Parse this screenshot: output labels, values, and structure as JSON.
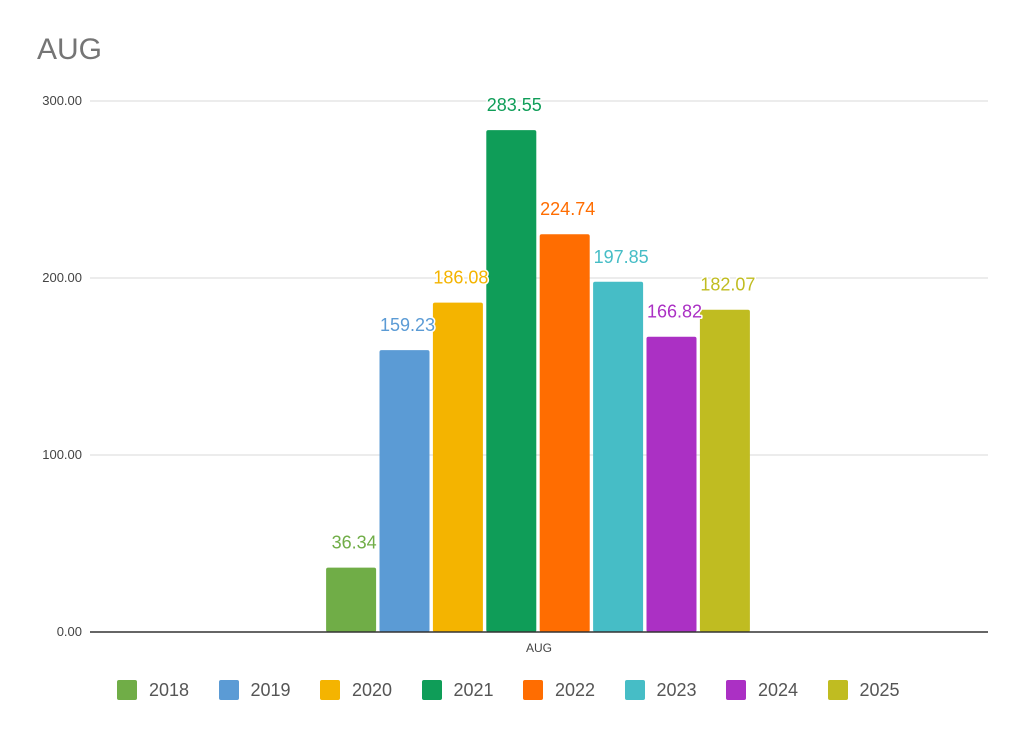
{
  "chart_data": {
    "type": "bar",
    "title": "AUG",
    "categories": [
      "AUG"
    ],
    "xlabel": "",
    "ylabel": "",
    "ylim": [
      0,
      300
    ],
    "yticks": [
      "0.00",
      "100.00",
      "200.00",
      "300.00"
    ],
    "grid": true,
    "legend_position": "bottom",
    "series": [
      {
        "name": "2018",
        "values": [
          36.34
        ],
        "label": "36.34",
        "color": "#70ad47"
      },
      {
        "name": "2019",
        "values": [
          159.23
        ],
        "label": "159.23",
        "color": "#5b9bd5"
      },
      {
        "name": "2020",
        "values": [
          186.08
        ],
        "label": "186.08",
        "color": "#f4b400"
      },
      {
        "name": "2021",
        "values": [
          283.55
        ],
        "label": "283.55",
        "color": "#0f9d58"
      },
      {
        "name": "2022",
        "values": [
          224.74
        ],
        "label": "224.74",
        "color": "#ff6d01"
      },
      {
        "name": "2023",
        "values": [
          197.85
        ],
        "label": "197.85",
        "color": "#46bdc6"
      },
      {
        "name": "2024",
        "values": [
          166.82
        ],
        "label": "166.82",
        "color": "#ab30c4"
      },
      {
        "name": "2025",
        "values": [
          182.07
        ],
        "label": "182.07",
        "color": "#c0bc21"
      }
    ]
  }
}
